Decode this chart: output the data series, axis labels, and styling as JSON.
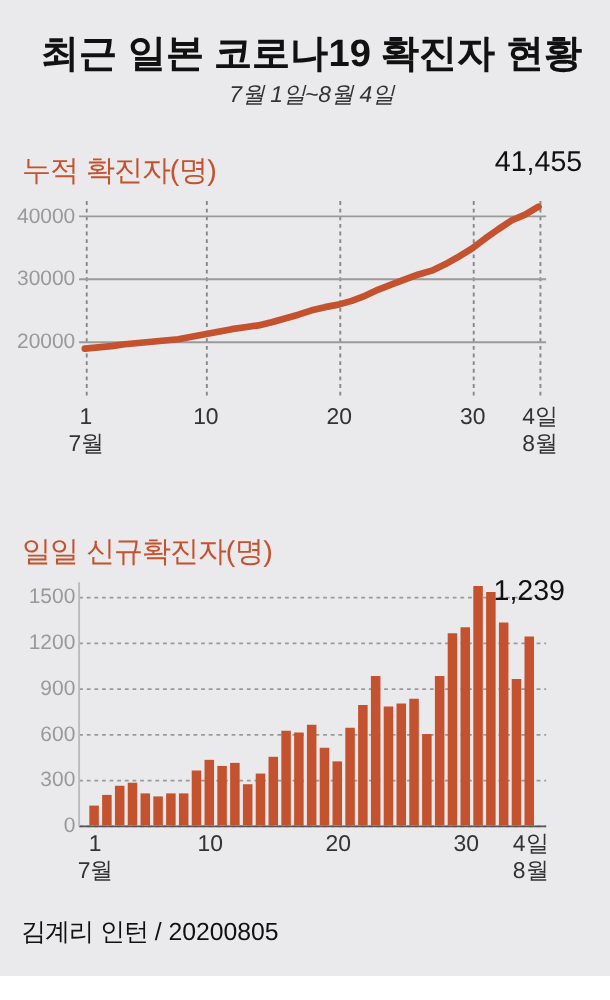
{
  "chart_data": [
    {
      "type": "line",
      "title": "최근 일본 코로나19 확진자 현황",
      "subtitle": "7월 1일~8월 4일",
      "ylabel": "누적 확진자(명)",
      "x": [
        "2020-07-01",
        "2020-07-02",
        "2020-07-03",
        "2020-07-04",
        "2020-07-05",
        "2020-07-06",
        "2020-07-07",
        "2020-07-08",
        "2020-07-09",
        "2020-07-10",
        "2020-07-11",
        "2020-07-12",
        "2020-07-13",
        "2020-07-14",
        "2020-07-15",
        "2020-07-16",
        "2020-07-17",
        "2020-07-18",
        "2020-07-19",
        "2020-07-20",
        "2020-07-21",
        "2020-07-22",
        "2020-07-23",
        "2020-07-24",
        "2020-07-25",
        "2020-07-26",
        "2020-07-27",
        "2020-07-28",
        "2020-07-29",
        "2020-07-30",
        "2020-07-31",
        "2020-08-01",
        "2020-08-02",
        "2020-08-03",
        "2020-08-04"
      ],
      "series": [
        {
          "color": "#c4522f",
          "values": [
            18900,
            19100,
            19300,
            19600,
            19800,
            20000,
            20200,
            20400,
            20800,
            21200,
            21600,
            22000,
            22300,
            22600,
            23100,
            23700,
            24300,
            25000,
            25500,
            25900,
            26500,
            27300,
            28300,
            29100,
            29900,
            30700,
            31300,
            32300,
            33500,
            34800,
            36400,
            37900,
            39300,
            40200,
            41455
          ]
        }
      ],
      "xlim": [
        "2020-06-30T12:00",
        "2020-08-04T12:00"
      ],
      "xticks": [
        {
          "value": "2020-07-01",
          "label": "1\n7월"
        },
        {
          "value": "2020-07-10",
          "label": "10"
        },
        {
          "value": "2020-07-20",
          "label": "20"
        },
        {
          "value": "2020-07-30",
          "label": "30"
        },
        {
          "value": "2020-08-04",
          "label": "4일\n8월"
        }
      ],
      "ylim": [
        11000,
        42500
      ],
      "yticks": [
        20000,
        30000,
        40000
      ],
      "grid": true,
      "line_style": "solid",
      "annotations": [
        {
          "text": "41,455",
          "x": "2020-08-04",
          "y": 41455
        }
      ]
    },
    {
      "type": "bar",
      "ylabel": "일일 신규확진자(명)",
      "x": [
        "2020-07-01",
        "2020-07-02",
        "2020-07-03",
        "2020-07-04",
        "2020-07-05",
        "2020-07-06",
        "2020-07-07",
        "2020-07-08",
        "2020-07-09",
        "2020-07-10",
        "2020-07-11",
        "2020-07-12",
        "2020-07-13",
        "2020-07-14",
        "2020-07-15",
        "2020-07-16",
        "2020-07-17",
        "2020-07-18",
        "2020-07-19",
        "2020-07-20",
        "2020-07-21",
        "2020-07-22",
        "2020-07-23",
        "2020-07-24",
        "2020-07-25",
        "2020-07-26",
        "2020-07-27",
        "2020-07-28",
        "2020-07-29",
        "2020-07-30",
        "2020-07-31",
        "2020-08-01",
        "2020-08-02",
        "2020-08-03",
        "2020-08-04"
      ],
      "series": [
        {
          "color": "#c4522f",
          "values": [
            130,
            200,
            260,
            280,
            210,
            190,
            210,
            210,
            360,
            430,
            390,
            410,
            270,
            340,
            450,
            620,
            610,
            660,
            510,
            420,
            640,
            790,
            980,
            780,
            800,
            830,
            600,
            980,
            1260,
            1300,
            1570,
            1530,
            1330,
            960,
            1239
          ]
        }
      ],
      "xlim": [
        "2020-06-30T12:00",
        "2020-08-04T12:00"
      ],
      "xticks": [
        {
          "value": "2020-07-01",
          "label": "1\n7월"
        },
        {
          "value": "2020-07-10",
          "label": "10"
        },
        {
          "value": "2020-07-20",
          "label": "20"
        },
        {
          "value": "2020-07-30",
          "label": "30"
        },
        {
          "value": "2020-08-04",
          "label": "4일\n8월"
        }
      ],
      "ylim": [
        0,
        1600
      ],
      "yticks": [
        0,
        300,
        600,
        900,
        1200,
        1500
      ],
      "grid": "y",
      "annotations": [
        {
          "text": "1,239",
          "x": "2020-08-04",
          "y": 1239
        },
        "김계리 인턴 / 20200805"
      ]
    }
  ]
}
